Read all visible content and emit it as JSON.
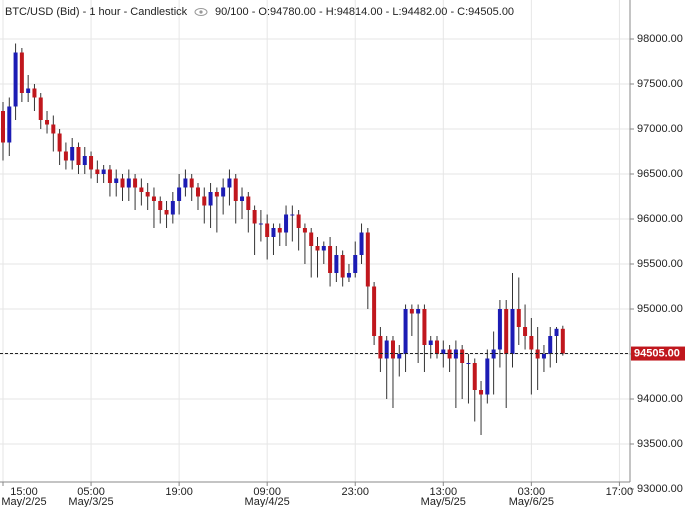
{
  "chart_data": {
    "type": "candlestick",
    "title": "BTC/USD (Bid) - 1 hour - Candlestick",
    "subtitle": "90/100 - O:94780.00 - H:94814.00 - L:94482.00 - C:94505.00",
    "x": [
      "May/2/25 15:00",
      "May/2/25 16:00",
      "May/2/25 17:00",
      "May/2/25 18:00",
      "May/2/25 19:00",
      "May/2/25 20:00",
      "May/2/25 21:00",
      "May/2/25 22:00",
      "May/2/25 23:00",
      "May/3/25 00:00",
      "May/3/25 01:00",
      "May/3/25 02:00",
      "May/3/25 03:00",
      "May/3/25 04:00",
      "May/3/25 05:00",
      "May/3/25 06:00",
      "May/3/25 07:00",
      "May/3/25 08:00",
      "May/3/25 09:00",
      "May/3/25 10:00",
      "May/3/25 11:00",
      "May/3/25 12:00",
      "May/3/25 13:00",
      "May/3/25 14:00",
      "May/3/25 15:00",
      "May/3/25 16:00",
      "May/3/25 17:00",
      "May/3/25 18:00",
      "May/3/25 19:00",
      "May/3/25 20:00",
      "May/3/25 21:00",
      "May/3/25 22:00",
      "May/3/25 23:00",
      "May/4/25 00:00",
      "May/4/25 01:00",
      "May/4/25 02:00",
      "May/4/25 03:00",
      "May/4/25 04:00",
      "May/4/25 05:00",
      "May/4/25 06:00",
      "May/4/25 07:00",
      "May/4/25 08:00",
      "May/4/25 09:00",
      "May/4/25 10:00",
      "May/4/25 11:00",
      "May/4/25 12:00",
      "May/4/25 13:00",
      "May/4/25 14:00",
      "May/4/25 15:00",
      "May/4/25 16:00",
      "May/4/25 17:00",
      "May/4/25 18:00",
      "May/4/25 19:00",
      "May/4/25 20:00",
      "May/4/25 21:00",
      "May/4/25 22:00",
      "May/4/25 23:00",
      "May/5/25 00:00",
      "May/5/25 01:00",
      "May/5/25 02:00",
      "May/5/25 03:00",
      "May/5/25 04:00",
      "May/5/25 05:00",
      "May/5/25 06:00",
      "May/5/25 07:00",
      "May/5/25 08:00",
      "May/5/25 09:00",
      "May/5/25 10:00",
      "May/5/25 11:00",
      "May/5/25 12:00",
      "May/5/25 13:00",
      "May/5/25 14:00",
      "May/5/25 15:00",
      "May/5/25 16:00",
      "May/5/25 17:00",
      "May/5/25 18:00",
      "May/5/25 19:00",
      "May/5/25 20:00",
      "May/5/25 21:00",
      "May/5/25 22:00",
      "May/5/25 23:00",
      "May/6/25 00:00",
      "May/6/25 01:00",
      "May/6/25 02:00",
      "May/6/25 03:00",
      "May/6/25 04:00",
      "May/6/25 05:00",
      "May/6/25 06:00",
      "May/6/25 07:00",
      "May/6/25 08:00"
    ],
    "open": [
      97200,
      96850,
      97250,
      97850,
      97400,
      97450,
      97350,
      97100,
      97050,
      96950,
      96750,
      96650,
      96800,
      96600,
      96700,
      96550,
      96500,
      96550,
      96400,
      96450,
      96350,
      96450,
      96350,
      96300,
      96250,
      96200,
      96100,
      96050,
      96200,
      96350,
      96450,
      96350,
      96250,
      96150,
      96300,
      96250,
      96350,
      96450,
      96200,
      96250,
      96100,
      95950,
      95950,
      95800,
      95900,
      95850,
      96050,
      96050,
      95900,
      95850,
      95700,
      95650,
      95700,
      95400,
      95600,
      95350,
      95400,
      95600,
      95850,
      95250,
      94700,
      94450,
      94650,
      94450,
      94500,
      95000,
      94950,
      95000,
      94600,
      94650,
      94500,
      94550,
      94450,
      94550,
      94400,
      94400,
      94100,
      94050,
      94450,
      94550,
      95000,
      94500,
      95000,
      94800,
      94700,
      94550,
      94450,
      94500,
      94700,
      94780
    ],
    "high": [
      97300,
      97350,
      97950,
      97900,
      97600,
      97500,
      97400,
      97200,
      97150,
      97000,
      96850,
      96900,
      96850,
      96800,
      96750,
      96650,
      96600,
      96600,
      96550,
      96500,
      96550,
      96500,
      96450,
      96400,
      96350,
      96250,
      96200,
      96300,
      96500,
      96550,
      96500,
      96400,
      96350,
      96400,
      96350,
      96450,
      96550,
      96500,
      96350,
      96300,
      96150,
      96100,
      96050,
      95950,
      95950,
      96150,
      96150,
      96100,
      95950,
      95900,
      95800,
      95750,
      95800,
      95700,
      95650,
      95500,
      95750,
      95950,
      95900,
      95300,
      94800,
      94700,
      94700,
      94600,
      95050,
      95050,
      95050,
      95050,
      94700,
      94700,
      94650,
      94600,
      94650,
      94600,
      94500,
      94450,
      94200,
      94550,
      94750,
      95100,
      95100,
      95400,
      95350,
      95050,
      94900,
      94800,
      94600,
      94800,
      94800,
      94814
    ],
    "low": [
      96650,
      96700,
      97100,
      97300,
      97300,
      97200,
      97000,
      96950,
      96750,
      96600,
      96550,
      96550,
      96500,
      96500,
      96450,
      96400,
      96400,
      96250,
      96250,
      96200,
      96200,
      96100,
      96150,
      96100,
      95900,
      95950,
      95900,
      95950,
      96050,
      96250,
      96200,
      96100,
      95950,
      95900,
      95850,
      96050,
      96150,
      95950,
      96000,
      95850,
      95600,
      95750,
      95550,
      95600,
      95700,
      95700,
      95750,
      95650,
      95500,
      95350,
      95350,
      95500,
      95250,
      95300,
      95250,
      95300,
      95350,
      95500,
      95000,
      94600,
      94300,
      94000,
      93900,
      94250,
      94300,
      94700,
      94400,
      94300,
      94450,
      94450,
      94350,
      94300,
      93900,
      94000,
      93950,
      93750,
      93600,
      93950,
      94050,
      94350,
      93900,
      94350,
      94600,
      94550,
      94050,
      94100,
      94300,
      94350,
      94400,
      94482
    ],
    "close": [
      96850,
      97250,
      97850,
      97400,
      97450,
      97350,
      97100,
      97050,
      96950,
      96750,
      96650,
      96800,
      96600,
      96700,
      96550,
      96500,
      96550,
      96400,
      96450,
      96350,
      96450,
      96350,
      96300,
      96250,
      96200,
      96100,
      96050,
      96200,
      96350,
      96450,
      96350,
      96250,
      96150,
      96300,
      96250,
      96350,
      96450,
      96200,
      96250,
      96100,
      95950,
      95950,
      95800,
      95900,
      95850,
      96050,
      96050,
      95900,
      95850,
      95700,
      95650,
      95700,
      95400,
      95600,
      95350,
      95400,
      95600,
      95850,
      95250,
      94700,
      94450,
      94650,
      94450,
      94500,
      95000,
      94950,
      95000,
      94600,
      94650,
      94500,
      94550,
      94450,
      94550,
      94400,
      94400,
      94100,
      94050,
      94450,
      94550,
      95000,
      94500,
      95000,
      94800,
      94700,
      94550,
      94450,
      94500,
      94700,
      94780,
      94505
    ],
    "up_color": "#1c1cb4",
    "down_color": "#c0171d",
    "ylim": [
      93000,
      98000
    ],
    "yticks": [
      {
        "value": 93000,
        "label": "93000.00"
      },
      {
        "value": 93500,
        "label": "93500.00"
      },
      {
        "value": 94000,
        "label": "94000.00"
      },
      {
        "value": 94500,
        "label": "94500.00"
      },
      {
        "value": 95000,
        "label": "95000.00"
      },
      {
        "value": 95500,
        "label": "95500.00"
      },
      {
        "value": 96000,
        "label": "96000.00"
      },
      {
        "value": 96500,
        "label": "96500.00"
      },
      {
        "value": 97000,
        "label": "97000.00"
      },
      {
        "value": 97500,
        "label": "97500.00"
      },
      {
        "value": 98000,
        "label": "98000.00"
      }
    ],
    "xticks": [
      {
        "value": "May/2/25 15:00",
        "label": "15:00",
        "date": "May/2/25"
      },
      {
        "value": "May/3/25 05:00",
        "label": "05:00",
        "date": "May/3/25"
      },
      {
        "value": "May/3/25 19:00",
        "label": "19:00"
      },
      {
        "value": "May/4/25 09:00",
        "label": "09:00",
        "date": "May/4/25"
      },
      {
        "value": "May/4/25 23:00",
        "label": "23:00"
      },
      {
        "value": "May/5/25 13:00",
        "label": "13:00",
        "date": "May/5/25"
      },
      {
        "value": "May/6/25 03:00",
        "label": "03:00",
        "date": "May/6/25"
      },
      {
        "value": "May/6/25 17:00",
        "label": "17:00"
      }
    ],
    "current_price": {
      "value": 94505,
      "label": "94505.00",
      "color": "#c0171d"
    },
    "grid": true
  }
}
